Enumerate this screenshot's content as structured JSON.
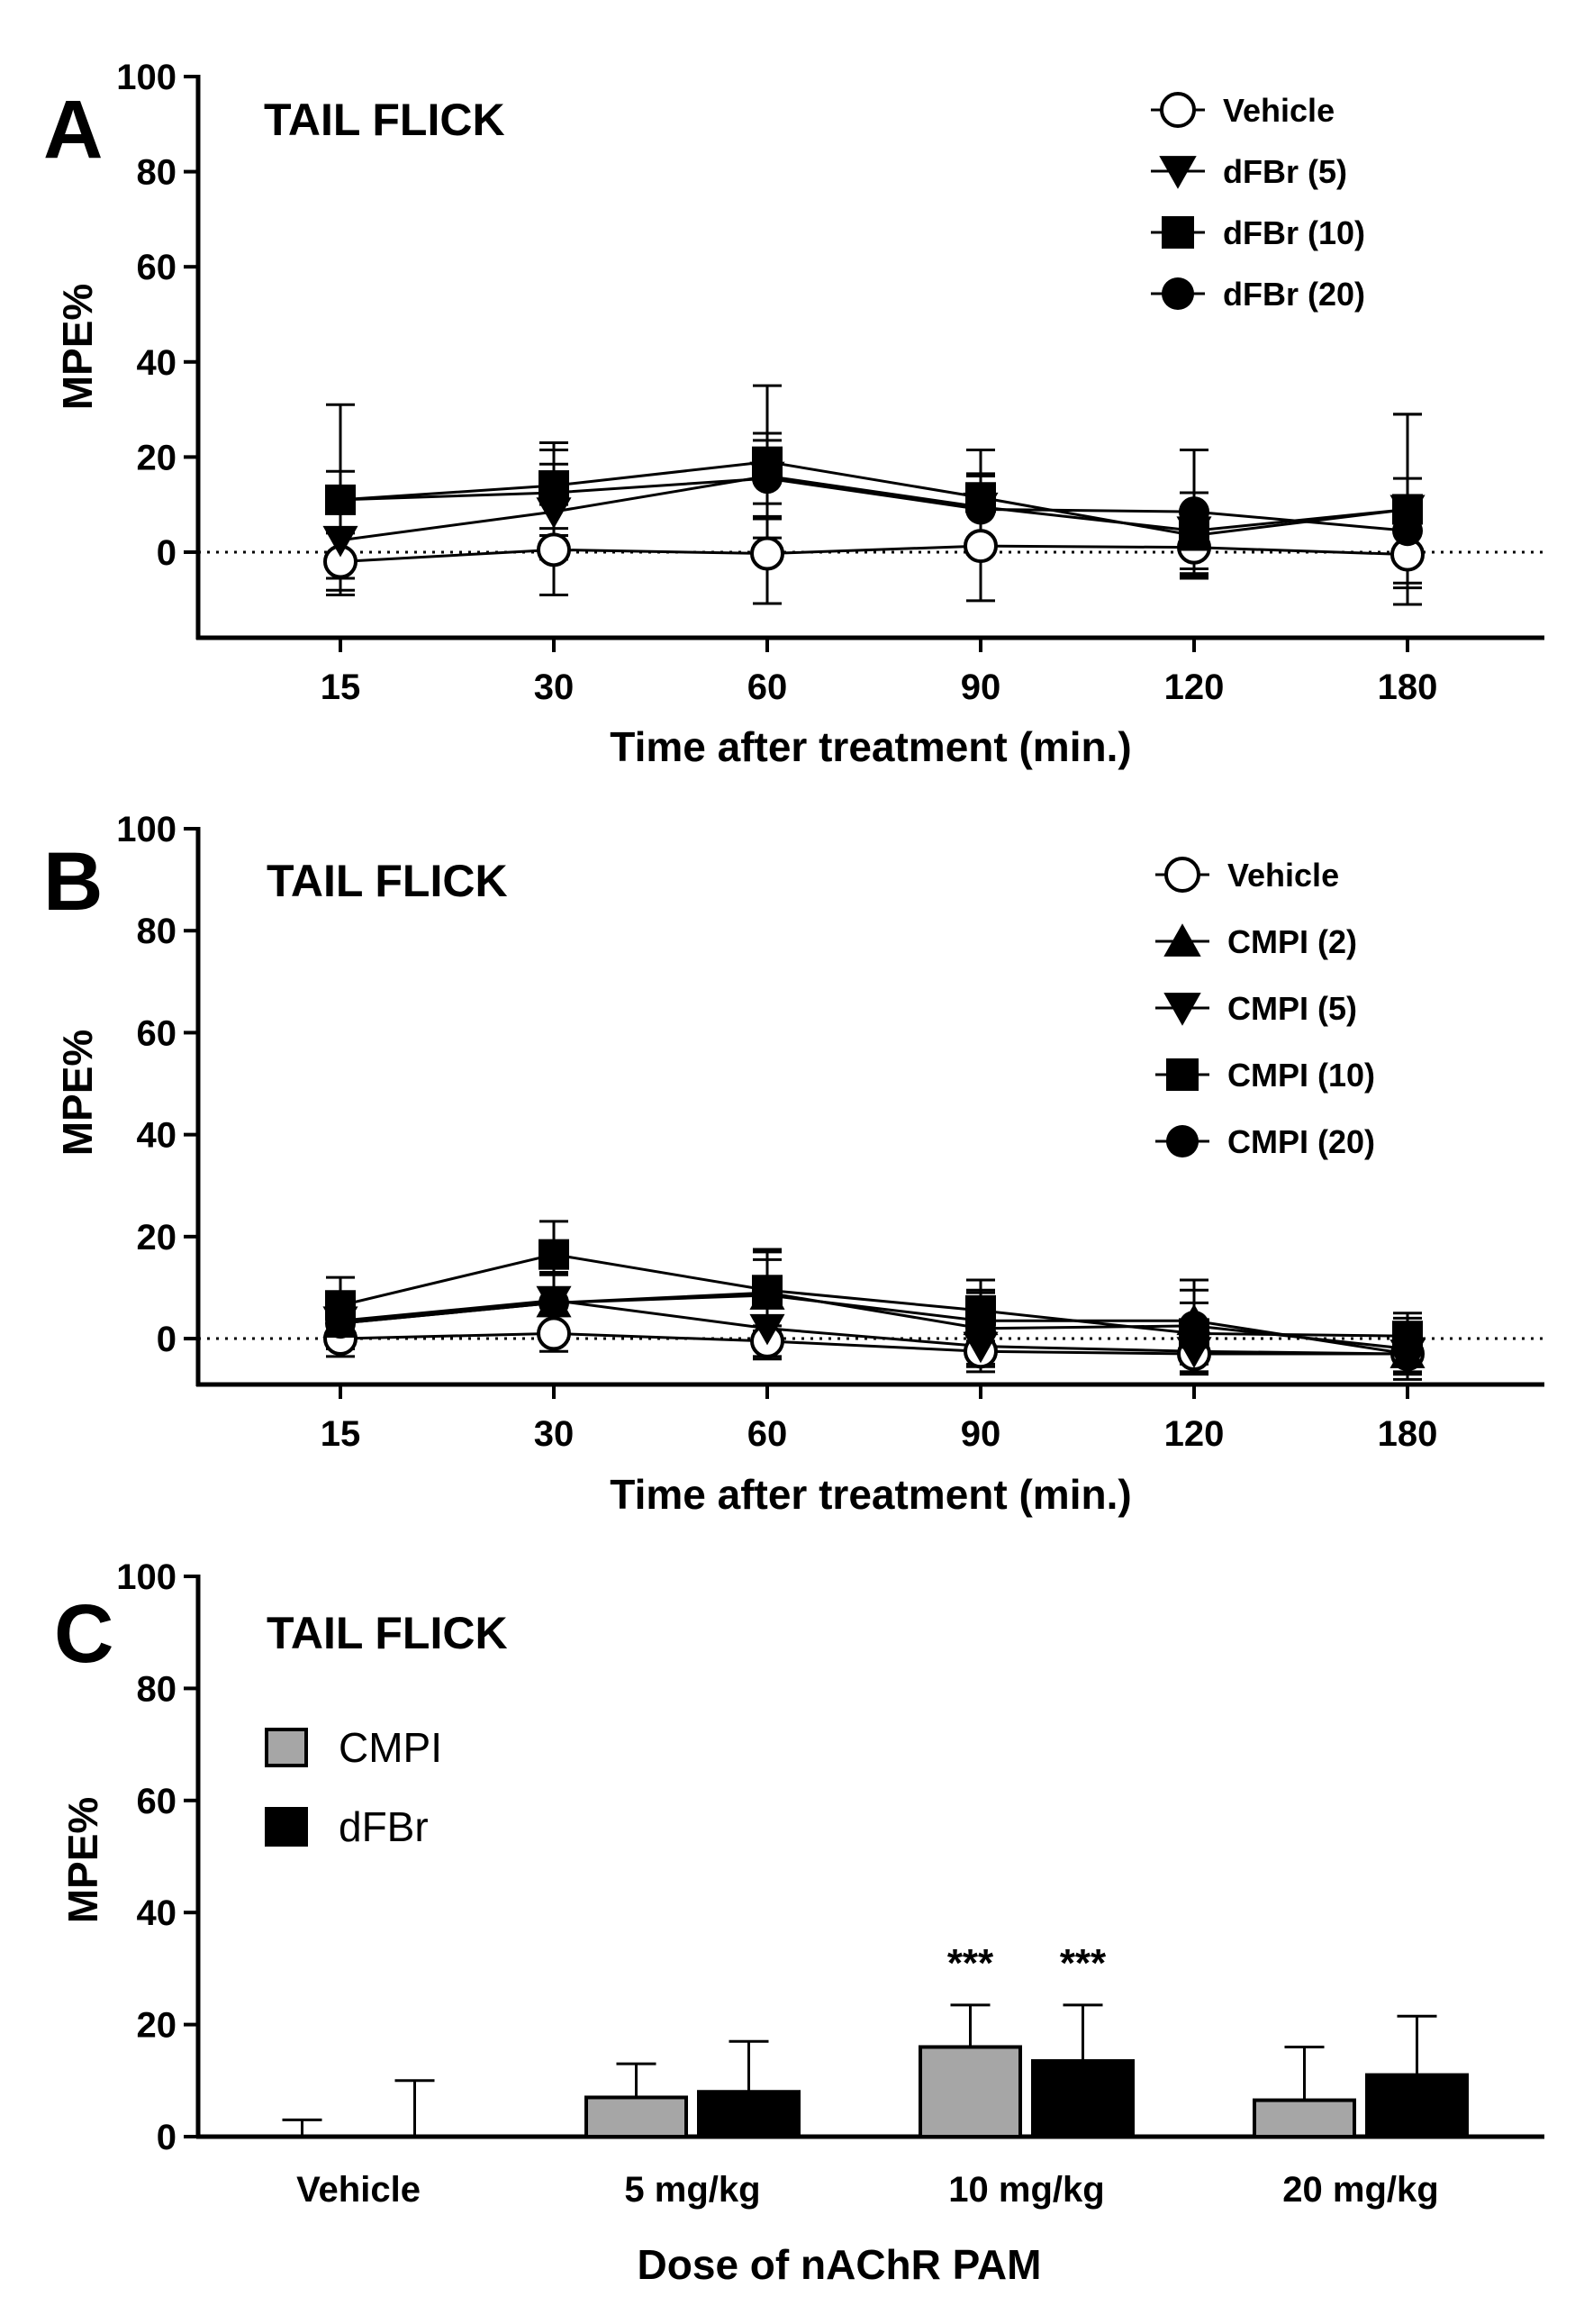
{
  "panels": [
    {
      "letter": "A",
      "title": "TAIL FLICK",
      "chart_data": {
        "type": "line",
        "x_categories": [
          "15",
          "30",
          "60",
          "90",
          "120",
          "180"
        ],
        "xlabel": "Time after treatment (min.)",
        "ylabel": "MPE%",
        "ylim": [
          -18,
          100
        ],
        "y_ticks": [
          0,
          20,
          40,
          60,
          80,
          100
        ],
        "reference_line": 0,
        "legend_position": "top-right",
        "series": [
          {
            "name": "Vehicle",
            "marker": "open-circle",
            "values": [
              -2,
              0.5,
              -0.3,
              1.3,
              1.0,
              -0.5
            ],
            "errors": [
              6,
              9.5,
              10.5,
              11.5,
              6,
              7
            ]
          },
          {
            "name": "dFBr (5)",
            "marker": "down-triangle",
            "values": [
              2.5,
              8.5,
              16,
              9.5,
              4.5,
              9
            ],
            "errors": [
              8,
              10,
              9,
              7,
              8,
              20
            ]
          },
          {
            "name": "dFBr (10)",
            "marker": "square",
            "values": [
              11,
              14,
              19,
              11.5,
              3.5,
              9
            ],
            "errors": [
              20,
              9,
              16,
              10,
              9,
              20
            ]
          },
          {
            "name": "dFBr (20)",
            "marker": "filled-circle",
            "values": [
              11,
              12.5,
              15.5,
              9,
              8.5,
              4.5
            ],
            "errors": [
              6,
              9,
              8,
              7,
              13,
              11
            ]
          }
        ]
      }
    },
    {
      "letter": "B",
      "title": "TAIL FLICK",
      "chart_data": {
        "type": "line",
        "x_categories": [
          "15",
          "30",
          "60",
          "90",
          "120",
          "180"
        ],
        "xlabel": "Time after treatment (min.)",
        "ylabel": "MPE%",
        "ylim": [
          -9,
          100
        ],
        "y_ticks": [
          0,
          20,
          40,
          60,
          80,
          100
        ],
        "reference_line": 0,
        "legend_position": "top-right",
        "series": [
          {
            "name": "Vehicle",
            "marker": "open-circle",
            "values": [
              0,
              1,
              -0.5,
              -2.5,
              -3,
              -3
            ],
            "errors": [
              3.5,
              3.5,
              3,
              3,
              4,
              3.5
            ]
          },
          {
            "name": "CMPI (2)",
            "marker": "up-triangle",
            "values": [
              3,
              7,
              8.5,
              3.5,
              3.5,
              -3
            ],
            "errors": [
              5,
              6,
              7,
              6,
              6,
              4
            ]
          },
          {
            "name": "CMPI (5)",
            "marker": "down-triangle",
            "values": [
              3.5,
              7.5,
              2,
              -1.5,
              -2.5,
              -3
            ],
            "errors": [
              5,
              5,
              6,
              5,
              4,
              4
            ]
          },
          {
            "name": "CMPI (10)",
            "marker": "square",
            "values": [
              6.5,
              16.5,
              9.5,
              5.5,
              1,
              0.5
            ],
            "errors": [
              5.5,
              6.5,
              8,
              6,
              6,
              4.5
            ]
          },
          {
            "name": "CMPI (20)",
            "marker": "filled-circle",
            "values": [
              3,
              7,
              9,
              2,
              2.5,
              -2
            ],
            "errors": [
              5,
              6,
              8,
              7,
              9,
              6
            ]
          }
        ]
      }
    },
    {
      "letter": "C",
      "title": "TAIL FLICK",
      "chart_data": {
        "type": "bar",
        "categories": [
          "Vehicle",
          "5 mg/kg",
          "10 mg/kg",
          "20 mg/kg"
        ],
        "xlabel": "Dose of nAChR PAM",
        "ylabel": "MPE%",
        "ylim": [
          0,
          100
        ],
        "y_ticks": [
          0,
          20,
          40,
          60,
          80,
          100
        ],
        "legend_position": "top-left",
        "series": [
          {
            "name": "CMPI",
            "color": "#a6a6a6",
            "values": [
              0,
              7,
              16,
              6.5
            ],
            "errors": [
              3,
              6,
              7.5,
              9.5
            ]
          },
          {
            "name": "dFBr",
            "color": "#000000",
            "values": [
              0,
              8,
              13.5,
              11
            ],
            "errors": [
              10,
              9,
              10,
              10.5
            ]
          }
        ],
        "annotations": [
          {
            "category": "10 mg/kg",
            "series": "CMPI",
            "text": "***"
          },
          {
            "category": "10 mg/kg",
            "series": "dFBr",
            "text": "***"
          }
        ]
      }
    }
  ]
}
